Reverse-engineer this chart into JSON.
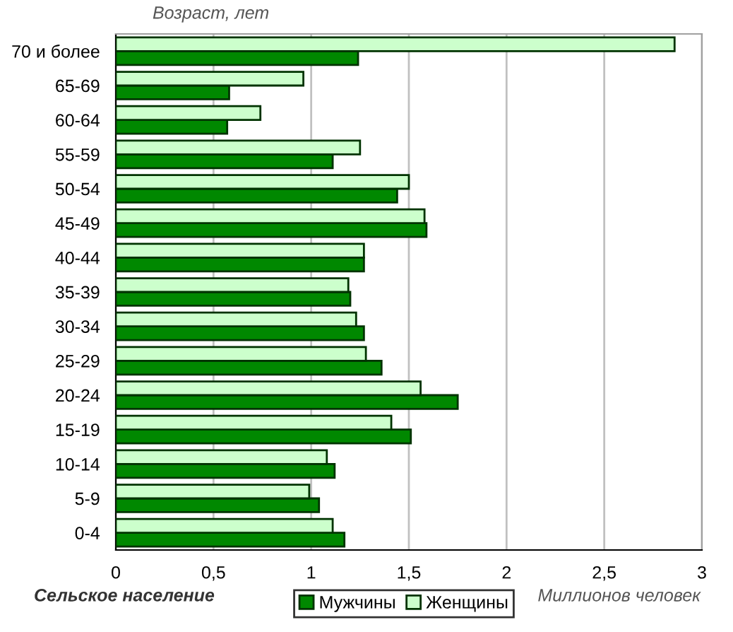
{
  "chart_data": {
    "type": "bar",
    "orientation": "horizontal",
    "title": "Сельское население",
    "ylabel": "Возраст, лет",
    "xlabel": "Миллионов человек",
    "categories": [
      "70 и более",
      "65-69",
      "60-64",
      "55-59",
      "50-54",
      "45-49",
      "40-44",
      "35-39",
      "30-34",
      "25-29",
      "20-24",
      "15-19",
      "10-14",
      "5-9",
      "0-4"
    ],
    "series": [
      {
        "name": "Мужчины",
        "color": "#008800",
        "values": [
          1.24,
          0.58,
          0.57,
          1.11,
          1.44,
          1.59,
          1.27,
          1.2,
          1.27,
          1.36,
          1.75,
          1.51,
          1.12,
          1.04,
          1.17
        ]
      },
      {
        "name": "Женщины",
        "color": "#ccffcc",
        "values": [
          2.86,
          0.96,
          0.74,
          1.25,
          1.5,
          1.58,
          1.27,
          1.19,
          1.23,
          1.28,
          1.56,
          1.41,
          1.08,
          0.99,
          1.11
        ]
      }
    ],
    "xlim": [
      0,
      3
    ],
    "xticks": [
      0,
      {
        "value": 0.5,
        "label": "0,5"
      },
      1,
      {
        "value": 1.5,
        "label": "1,5"
      },
      2,
      {
        "value": 2.5,
        "label": "2,5"
      },
      3
    ],
    "grid": "x",
    "legend": "bottom"
  }
}
